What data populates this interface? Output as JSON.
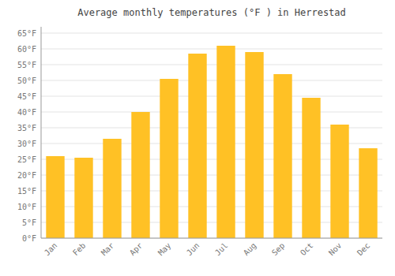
{
  "chart_data": {
    "type": "bar",
    "title": "Average monthly temperatures (°F ) in Herrestad",
    "categories": [
      "Jan",
      "Feb",
      "Mar",
      "Apr",
      "May",
      "Jun",
      "Jul",
      "Aug",
      "Sep",
      "Oct",
      "Nov",
      "Dec"
    ],
    "values": [
      26.0,
      25.5,
      31.5,
      40.0,
      50.5,
      58.5,
      61.0,
      59.0,
      52.0,
      44.5,
      36.0,
      28.5
    ],
    "color": "#FFC125",
    "ylim": [
      0,
      67
    ],
    "yticks": [
      {
        "value": 0,
        "label": "0°F"
      },
      {
        "value": 5,
        "label": "5°F"
      },
      {
        "value": 10,
        "label": "10°F"
      },
      {
        "value": 15,
        "label": "15°F"
      },
      {
        "value": 20,
        "label": "20°F"
      },
      {
        "value": 25,
        "label": "25°F"
      },
      {
        "value": 30,
        "label": "30°F"
      },
      {
        "value": 35,
        "label": "35°F"
      },
      {
        "value": 40,
        "label": "40°F"
      },
      {
        "value": 45,
        "label": "45°F"
      },
      {
        "value": 50,
        "label": "50°F"
      },
      {
        "value": 55,
        "label": "55°F"
      },
      {
        "value": 60,
        "label": "60°F"
      },
      {
        "value": 65,
        "label": "65°F"
      }
    ],
    "grid": true
  }
}
